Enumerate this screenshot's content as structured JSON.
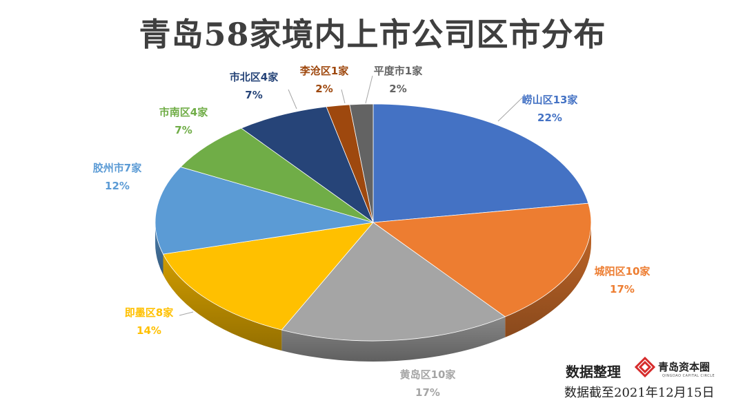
{
  "chart_data": {
    "type": "pie",
    "title": "青岛58家境内上市公司区市分布",
    "total": 58,
    "slices": [
      {
        "name": "崂山区13家",
        "label": "崂山区13家",
        "value": 13,
        "percent": "22%",
        "color": "#4472C4"
      },
      {
        "name": "城阳区10家",
        "label": "城阳区10家",
        "value": 10,
        "percent": "17%",
        "color": "#ED7D31"
      },
      {
        "name": "黄岛区10家",
        "label": "黄岛区10家",
        "value": 10,
        "percent": "17%",
        "color": "#A5A5A5"
      },
      {
        "name": "即墨区8家",
        "label": "即墨区8家",
        "value": 8,
        "percent": "14%",
        "color": "#FFC000"
      },
      {
        "name": "胶州市7家",
        "label": "胶州市7家",
        "value": 7,
        "percent": "12%",
        "color": "#5B9BD5"
      },
      {
        "name": "市南区4家",
        "label": "市南区4家",
        "value": 4,
        "percent": "7%",
        "color": "#70AD47"
      },
      {
        "name": "市北区4家",
        "label": "市北区4家",
        "value": 4,
        "percent": "7%",
        "color": "#264478"
      },
      {
        "name": "李沧区1家",
        "label": "李沧区1家",
        "value": 1,
        "percent": "2%",
        "color": "#9E480E"
      },
      {
        "name": "平度市1家",
        "label": "平度市1家",
        "value": 1,
        "percent": "2%",
        "color": "#636363"
      }
    ]
  },
  "footer": {
    "prepared_by": "数据整理",
    "brand": "青岛资本圈",
    "brand_en": "QINGDAO CAPITAL CIRCLE",
    "as_of": "数据截至2021年12月15日"
  }
}
